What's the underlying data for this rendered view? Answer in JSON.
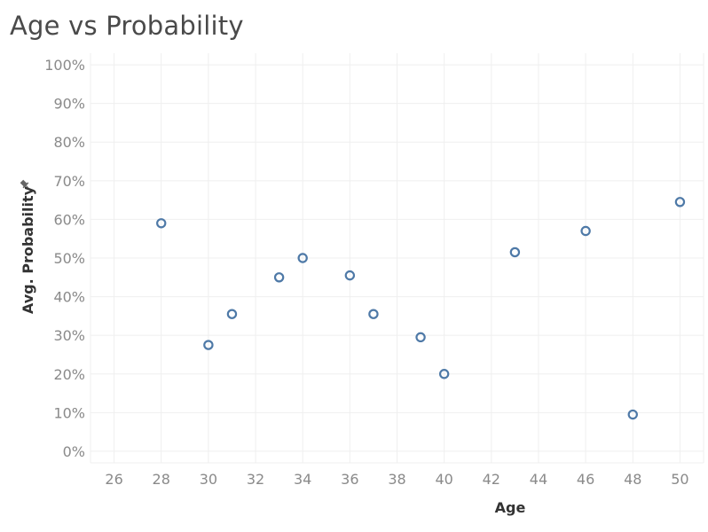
{
  "chart_data": {
    "type": "scatter",
    "title": "Age vs Probability",
    "xlabel": "Age",
    "ylabel": "Avg. Probability",
    "xlim": [
      25,
      51
    ],
    "ylim": [
      -3,
      103
    ],
    "x_ticks": [
      26,
      28,
      30,
      32,
      34,
      36,
      38,
      40,
      42,
      44,
      46,
      48,
      50
    ],
    "y_ticks": [
      0,
      10,
      20,
      30,
      40,
      50,
      60,
      70,
      80,
      90,
      100
    ],
    "y_tick_labels": [
      "0%",
      "10%",
      "20%",
      "30%",
      "40%",
      "50%",
      "60%",
      "70%",
      "80%",
      "90%",
      "100%"
    ],
    "grid": true,
    "marker": "hollow-circle",
    "color": "#4e79a7",
    "points": [
      {
        "x": 28,
        "y": 59
      },
      {
        "x": 30,
        "y": 27.5
      },
      {
        "x": 31,
        "y": 35.5
      },
      {
        "x": 33,
        "y": 45
      },
      {
        "x": 34,
        "y": 50
      },
      {
        "x": 36,
        "y": 45.5
      },
      {
        "x": 37,
        "y": 35.5
      },
      {
        "x": 39,
        "y": 29.5
      },
      {
        "x": 40,
        "y": 20
      },
      {
        "x": 43,
        "y": 51.5
      },
      {
        "x": 46,
        "y": 57
      },
      {
        "x": 48,
        "y": 9.5
      },
      {
        "x": 50,
        "y": 64.5
      }
    ]
  },
  "icons": {
    "pin": "pin-icon"
  }
}
